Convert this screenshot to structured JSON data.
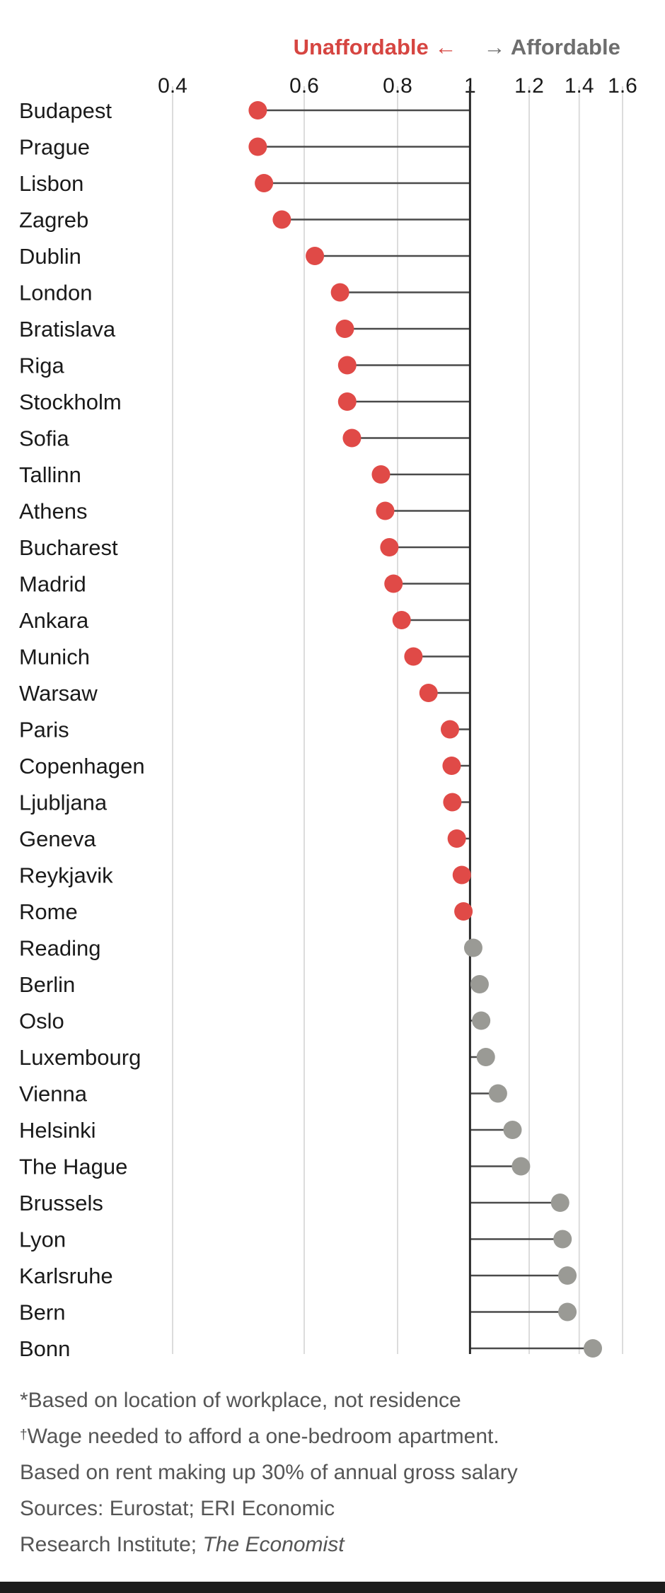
{
  "legend": {
    "negative_label": "Unaffordable",
    "negative_arrow": "←",
    "positive_arrow": "→",
    "positive_label": "Affordable",
    "negative_color": "#d64541",
    "positive_color": "#6e6e6e"
  },
  "chart_data": {
    "type": "lollipop",
    "baseline": 1,
    "xscale": "log",
    "xlim": [
      0.4,
      1.6
    ],
    "xticks": [
      0.4,
      0.6,
      0.8,
      1,
      1.2,
      1.4,
      1.6
    ],
    "xtick_labels": [
      "0.4",
      "0.6",
      "0.8",
      "1",
      "1.2",
      "1.4",
      "1.6"
    ],
    "grid": true,
    "colors": {
      "below_baseline": "#e04a47",
      "above_baseline": "#9a9a95",
      "stem": "#4a4a4a",
      "grid": "#dcdcdc"
    },
    "categories": [
      "Budapest",
      "Prague",
      "Lisbon",
      "Zagreb",
      "Dublin",
      "London",
      "Bratislava",
      "Riga",
      "Stockholm",
      "Sofia",
      "Tallinn",
      "Athens",
      "Bucharest",
      "Madrid",
      "Ankara",
      "Munich",
      "Warsaw",
      "Paris",
      "Copenhagen",
      "Ljubljana",
      "Geneva",
      "Reykjavik",
      "Rome",
      "Reading",
      "Berlin",
      "Oslo",
      "Luxembourg",
      "Vienna",
      "Helsinki",
      "The Hague",
      "Brussels",
      "Lyon",
      "Karlsruhe",
      "Bern",
      "Bonn"
    ],
    "values": [
      0.52,
      0.52,
      0.53,
      0.56,
      0.62,
      0.67,
      0.68,
      0.685,
      0.685,
      0.695,
      0.76,
      0.77,
      0.78,
      0.79,
      0.81,
      0.84,
      0.88,
      0.94,
      0.945,
      0.947,
      0.96,
      0.975,
      0.98,
      1.01,
      1.03,
      1.035,
      1.05,
      1.09,
      1.14,
      1.17,
      1.32,
      1.33,
      1.35,
      1.35,
      1.46
    ]
  },
  "notes": {
    "line1": "*Based on location of workplace, not residence",
    "line2_mark": "†",
    "line2": "Wage needed to afford a one-bedroom apartment.",
    "line3": "Based on rent making up 30% of annual gross salary",
    "line4": "Sources: Eurostat; ERI Economic",
    "line5_plain": "Research Institute; ",
    "line5_italic": "The Economist"
  }
}
